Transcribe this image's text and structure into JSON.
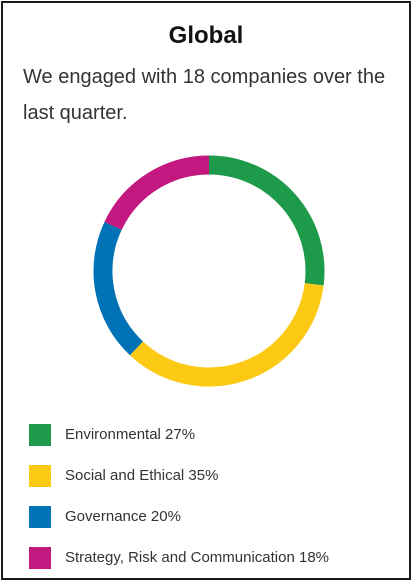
{
  "chart_data": {
    "type": "pie",
    "variant": "donut",
    "title": "Global",
    "subtitle": "We engaged with 18 companies over the last quarter.",
    "categories": [
      "Environmental",
      "Social and Ethical",
      "Governance",
      "Strategy, Risk and Communication"
    ],
    "values": [
      27,
      35,
      20,
      18
    ],
    "unit": "%",
    "colors": [
      "#1e9a4b",
      "#fcc914",
      "#0072b5",
      "#c2187f"
    ],
    "legend_labels": [
      "Environmental 27%",
      "Social and Ethical 35%",
      "Governance 20%",
      "Strategy, Risk and Communication 18%"
    ],
    "legend_position": "bottom"
  }
}
